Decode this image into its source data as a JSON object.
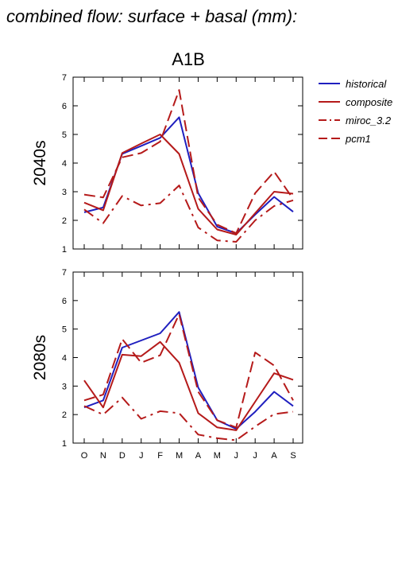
{
  "title": "combined flow: surface + basal (mm):",
  "scenario": "A1B",
  "colors": {
    "historical": "#1f1fbf",
    "future": "#b51a1a"
  },
  "chart_data": [
    {
      "type": "line",
      "panel_label": "2040s",
      "categories": [
        "O",
        "N",
        "D",
        "J",
        "F",
        "M",
        "A",
        "M",
        "J",
        "J",
        "A",
        "S"
      ],
      "ylim": [
        1,
        7
      ],
      "yticks": [
        1,
        2,
        3,
        4,
        5,
        6,
        7
      ],
      "series": [
        {
          "name": "historical",
          "style": "solid",
          "color": "#1f1fbf",
          "values": [
            2.28,
            2.45,
            4.32,
            4.6,
            4.88,
            5.6,
            2.95,
            1.78,
            1.55,
            2.2,
            2.82,
            2.3
          ]
        },
        {
          "name": "composite",
          "style": "solid",
          "color": "#b51a1a",
          "values": [
            2.62,
            2.35,
            4.35,
            4.68,
            5.0,
            4.32,
            2.4,
            1.68,
            1.5,
            2.25,
            3.0,
            2.93
          ]
        },
        {
          "name": "miroc_3.2",
          "style": "dashdot",
          "color": "#b51a1a",
          "values": [
            2.38,
            1.9,
            2.85,
            2.52,
            2.6,
            3.22,
            1.75,
            1.3,
            1.25,
            2.0,
            2.5,
            2.7
          ]
        },
        {
          "name": "pcm1",
          "style": "dash",
          "color": "#b51a1a",
          "values": [
            2.9,
            2.8,
            4.2,
            4.35,
            4.75,
            6.55,
            2.8,
            1.85,
            1.55,
            2.95,
            3.7,
            2.75
          ]
        }
      ]
    },
    {
      "type": "line",
      "panel_label": "2080s",
      "categories": [
        "O",
        "N",
        "D",
        "J",
        "F",
        "M",
        "A",
        "M",
        "J",
        "J",
        "A",
        "S"
      ],
      "ylim": [
        1,
        7
      ],
      "yticks": [
        1,
        2,
        3,
        4,
        5,
        6,
        7
      ],
      "series": [
        {
          "name": "historical",
          "style": "solid",
          "color": "#1f1fbf",
          "values": [
            2.25,
            2.5,
            4.35,
            4.6,
            4.85,
            5.6,
            2.95,
            1.8,
            1.5,
            2.1,
            2.8,
            2.3
          ]
        },
        {
          "name": "composite",
          "style": "solid",
          "color": "#b51a1a",
          "values": [
            3.2,
            2.25,
            4.1,
            4.05,
            4.55,
            3.82,
            2.05,
            1.55,
            1.45,
            2.45,
            3.45,
            3.22
          ]
        },
        {
          "name": "miroc_3.2",
          "style": "dashdot",
          "color": "#b51a1a",
          "values": [
            2.3,
            2.0,
            2.6,
            1.85,
            2.12,
            2.05,
            1.3,
            1.17,
            1.1,
            1.58,
            2.02,
            2.1
          ]
        },
        {
          "name": "pcm1",
          "style": "dash",
          "color": "#b51a1a",
          "values": [
            2.5,
            2.7,
            4.65,
            3.82,
            4.08,
            5.52,
            2.8,
            1.8,
            1.55,
            4.18,
            3.72,
            2.5
          ]
        }
      ]
    }
  ]
}
